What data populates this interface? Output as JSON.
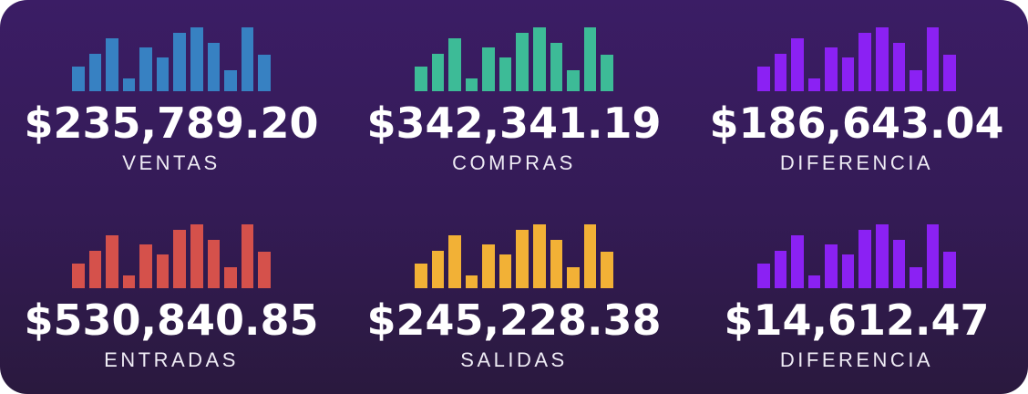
{
  "panel": {
    "background_top": "#3b1d65",
    "background_bottom": "#2a193e",
    "text_color": "#ffffff"
  },
  "sparkline": {
    "bar_count": 12,
    "relative_heights_pct": [
      39,
      58,
      83,
      20,
      69,
      53,
      91,
      100,
      75,
      33,
      100,
      57
    ]
  },
  "tiles": [
    {
      "id": "ventas",
      "amount": "$235,789.20",
      "label": "VENTAS",
      "bar_color": "#3781c2"
    },
    {
      "id": "compras",
      "amount": "$342,341.19",
      "label": "COMPRAS",
      "bar_color": "#3dbb97"
    },
    {
      "id": "diferencia-top",
      "amount": "$186,643.04",
      "label": "DIFERENCIA",
      "bar_color": "#8b21f3"
    },
    {
      "id": "entradas",
      "amount": "$530,840.85",
      "label": "ENTRADAS",
      "bar_color": "#d5514b"
    },
    {
      "id": "salidas",
      "amount": "$245,228.38",
      "label": "SALIDAS",
      "bar_color": "#f2b136"
    },
    {
      "id": "diferencia-bottom",
      "amount": "$14,612.47",
      "label": "DIFERENCIA",
      "bar_color": "#8b21f3"
    }
  ],
  "chart_data": [
    {
      "type": "bar",
      "title": "VENTAS",
      "annotation": "$235,789.20",
      "series_color": "#3781c2",
      "values": [
        39,
        58,
        83,
        20,
        69,
        53,
        91,
        100,
        75,
        33,
        100,
        57
      ],
      "value_unit": "relative height % (sparkline, no axes shown)",
      "grid": false,
      "legend": false
    },
    {
      "type": "bar",
      "title": "COMPRAS",
      "annotation": "$342,341.19",
      "series_color": "#3dbb97",
      "values": [
        39,
        58,
        83,
        20,
        69,
        53,
        91,
        100,
        75,
        33,
        100,
        57
      ],
      "value_unit": "relative height % (sparkline, no axes shown)",
      "grid": false,
      "legend": false
    },
    {
      "type": "bar",
      "title": "DIFERENCIA",
      "annotation": "$186,643.04",
      "series_color": "#8b21f3",
      "values": [
        39,
        58,
        83,
        20,
        69,
        53,
        91,
        100,
        75,
        33,
        100,
        57
      ],
      "value_unit": "relative height % (sparkline, no axes shown)",
      "grid": false,
      "legend": false
    },
    {
      "type": "bar",
      "title": "ENTRADAS",
      "annotation": "$530,840.85",
      "series_color": "#d5514b",
      "values": [
        39,
        58,
        83,
        20,
        69,
        53,
        91,
        100,
        75,
        33,
        100,
        57
      ],
      "value_unit": "relative height % (sparkline, no axes shown)",
      "grid": false,
      "legend": false
    },
    {
      "type": "bar",
      "title": "SALIDAS",
      "annotation": "$245,228.38",
      "series_color": "#f2b136",
      "values": [
        39,
        58,
        83,
        20,
        69,
        53,
        91,
        100,
        75,
        33,
        100,
        57
      ],
      "value_unit": "relative height % (sparkline, no axes shown)",
      "grid": false,
      "legend": false
    },
    {
      "type": "bar",
      "title": "DIFERENCIA",
      "annotation": "$14,612.47",
      "series_color": "#8b21f3",
      "values": [
        39,
        58,
        83,
        20,
        69,
        53,
        91,
        100,
        75,
        33,
        100,
        57
      ],
      "value_unit": "relative height % (sparkline, no axes shown)",
      "grid": false,
      "legend": false
    }
  ]
}
